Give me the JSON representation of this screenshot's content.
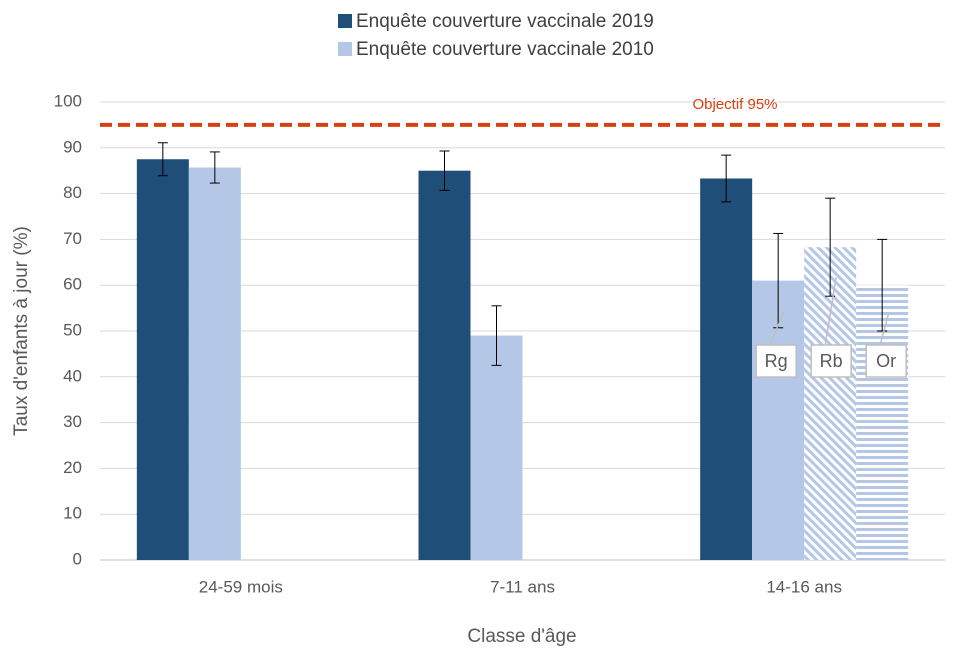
{
  "chart_data": {
    "type": "bar",
    "ylabel": "Taux d'enfants à jour (%)",
    "xlabel": "Classe d'âge",
    "categories": [
      "24-59 mois",
      "7-11 ans",
      "14-16 ans"
    ],
    "series": [
      {
        "name": "Enquête couverture vaccinale 2019",
        "color": "#1f4e79",
        "values": [
          87.5,
          85,
          83.3
        ],
        "errors": [
          3.6,
          4.3,
          5.1
        ]
      },
      {
        "name": "Enquête couverture vaccinale 2010",
        "color": "#b4c7e7",
        "values": [
          85.7,
          49,
          null
        ],
        "errors": [
          3.4,
          6.5,
          null
        ],
        "breakdown": [
          null,
          null,
          [
            {
              "label": "Rg",
              "value": 61,
              "error": 10.3,
              "pattern": "solid"
            },
            {
              "label": "Rb",
              "value": 68.3,
              "error": 10.7,
              "pattern": "diagonal"
            },
            {
              "label": "Or",
              "value": 60,
              "error": 10,
              "pattern": "horizontal"
            }
          ]
        ]
      }
    ],
    "target": {
      "value": 95,
      "label": "Objectif 95%",
      "color": "#d9400f"
    },
    "ylim": [
      0,
      100
    ],
    "yticks": [
      0,
      10,
      20,
      30,
      40,
      50,
      60,
      70,
      80,
      90,
      100
    ],
    "grid": true
  }
}
